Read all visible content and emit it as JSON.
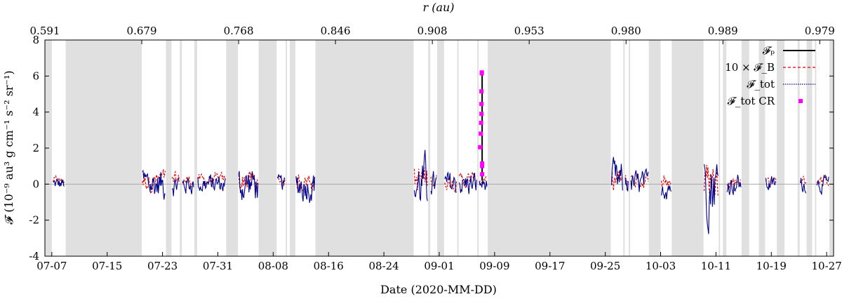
{
  "chart_data": {
    "type": "line",
    "xlabel": "Date (2020-MM-DD)",
    "ylabel": "𝓕 (10⁻⁹ au³ g cm⁻¹ s⁻² sr⁻¹)",
    "top_xlabel": "r (au)",
    "xlim": [
      "2020-07-06",
      "2020-10-28"
    ],
    "ylim": [
      -4,
      8
    ],
    "yticks": [
      -4,
      -2,
      0,
      2,
      4,
      6,
      8
    ],
    "xticks": [
      {
        "date": "2020-07-07",
        "label": "07-07"
      },
      {
        "date": "2020-07-15",
        "label": "07-15"
      },
      {
        "date": "2020-07-23",
        "label": "07-23"
      },
      {
        "date": "2020-07-31",
        "label": "07-31"
      },
      {
        "date": "2020-08-08",
        "label": "08-08"
      },
      {
        "date": "2020-08-16",
        "label": "08-16"
      },
      {
        "date": "2020-08-24",
        "label": "08-24"
      },
      {
        "date": "2020-09-01",
        "label": "09-01"
      },
      {
        "date": "2020-09-09",
        "label": "09-09"
      },
      {
        "date": "2020-09-17",
        "label": "09-17"
      },
      {
        "date": "2020-09-25",
        "label": "09-25"
      },
      {
        "date": "2020-10-03",
        "label": "10-03"
      },
      {
        "date": "2020-10-11",
        "label": "10-11"
      },
      {
        "date": "2020-10-19",
        "label": "10-19"
      },
      {
        "date": "2020-10-27",
        "label": "10-27"
      }
    ],
    "top_ticks": [
      {
        "date": "2020-07-06",
        "label": "0.591"
      },
      {
        "date": "2020-07-20",
        "label": "0.679"
      },
      {
        "date": "2020-08-03",
        "label": "0.768"
      },
      {
        "date": "2020-08-17",
        "label": "0.846"
      },
      {
        "date": "2020-08-31",
        "label": "0.908"
      },
      {
        "date": "2020-09-14",
        "label": "0.953"
      },
      {
        "date": "2020-09-28",
        "label": "0.980"
      },
      {
        "date": "2020-10-12",
        "label": "0.989"
      },
      {
        "date": "2020-10-26",
        "label": "0.979"
      }
    ],
    "gaps": [
      [
        "2020-07-06",
        "2020-07-07"
      ],
      [
        "2020-07-09",
        "2020-07-20"
      ],
      [
        "2020-07-23.5",
        "2020-07-24.3"
      ],
      [
        "2020-07-25.5",
        "2020-07-25.8"
      ],
      [
        "2020-07-27.6",
        "2020-07-28.0"
      ],
      [
        "2020-08-01.2",
        "2020-08-02.9"
      ],
      [
        "2020-08-05.9",
        "2020-08-08.5"
      ],
      [
        "2020-08-09.8",
        "2020-08-10.0"
      ],
      [
        "2020-08-10.4",
        "2020-08-11.2"
      ],
      [
        "2020-08-14.1",
        "2020-08-28.3"
      ],
      [
        "2020-08-30.4",
        "2020-08-30.7"
      ],
      [
        "2020-08-31.7",
        "2020-09-01.7"
      ],
      [
        "2020-09-03.6",
        "2020-09-03.8"
      ],
      [
        "2020-09-06.5",
        "2020-09-06.7"
      ],
      [
        "2020-09-08.0",
        "2020-09-25.8"
      ],
      [
        "2020-09-27.6",
        "2020-09-27.8"
      ],
      [
        "2020-09-28.4",
        "2020-09-28.6"
      ],
      [
        "2020-10-01.3",
        "2020-10-03.0"
      ],
      [
        "2020-10-04.6",
        "2020-10-09.2"
      ],
      [
        "2020-10-11.4",
        "2020-10-11.6"
      ],
      [
        "2020-10-12.0",
        "2020-10-12.5"
      ],
      [
        "2020-10-14.7",
        "2020-10-15.8"
      ],
      [
        "2020-10-17.2",
        "2020-10-18.1"
      ],
      [
        "2020-10-19.8",
        "2020-10-20.9"
      ],
      [
        "2020-10-22.8",
        "2020-10-23.1"
      ],
      [
        "2020-10-24.1",
        "2020-10-24.9"
      ],
      [
        "2020-10-25.3",
        "2020-10-25.5"
      ],
      [
        "2020-10-27.4",
        "2020-10-28"
      ]
    ],
    "data_segments": [
      {
        "start": "2020-07-07.2",
        "end": "2020-07-08.8",
        "amp": 0.35
      },
      {
        "start": "2020-07-20.1",
        "end": "2020-07-23.4",
        "amp": 0.8
      },
      {
        "start": "2020-07-24.4",
        "end": "2020-07-25.4",
        "amp": 0.6
      },
      {
        "start": "2020-07-25.9",
        "end": "2020-07-27.5",
        "amp": 0.5
      },
      {
        "start": "2020-07-28.1",
        "end": "2020-08-01.1",
        "amp": 0.5
      },
      {
        "start": "2020-08-03.0",
        "end": "2020-08-05.8",
        "amp": 0.9
      },
      {
        "start": "2020-08-08.6",
        "end": "2020-08-09.7",
        "amp": 0.4
      },
      {
        "start": "2020-08-11.3",
        "end": "2020-08-14.0",
        "amp": 0.8
      },
      {
        "start": "2020-08-28.4",
        "end": "2020-08-30.3",
        "amp": 1.3
      },
      {
        "start": "2020-08-30.8",
        "end": "2020-08-31.6",
        "amp": 0.6
      },
      {
        "start": "2020-09-01.8",
        "end": "2020-09-03.5",
        "amp": 0.6
      },
      {
        "start": "2020-09-03.9",
        "end": "2020-09-06.4",
        "amp": 0.6
      },
      {
        "start": "2020-09-06.8",
        "end": "2020-09-07.9",
        "amp": 0.4
      },
      {
        "start": "2020-09-25.9",
        "end": "2020-09-27.5",
        "amp": 1.0
      },
      {
        "start": "2020-09-27.9",
        "end": "2020-09-28.3",
        "amp": 0.5
      },
      {
        "start": "2020-09-28.7",
        "end": "2020-10-01.2",
        "amp": 0.6
      },
      {
        "start": "2020-10-03.1",
        "end": "2020-10-04.5",
        "amp": 0.7
      },
      {
        "start": "2020-10-09.3",
        "end": "2020-10-11.3",
        "amp": 1.6
      },
      {
        "start": "2020-10-12.6",
        "end": "2020-10-14.6",
        "amp": 0.5
      },
      {
        "start": "2020-10-18.2",
        "end": "2020-10-19.7",
        "amp": 0.4
      },
      {
        "start": "2020-10-23.2",
        "end": "2020-10-24.0",
        "amp": 0.4
      },
      {
        "start": "2020-10-25.6",
        "end": "2020-10-27.3",
        "amp": 0.4
      }
    ],
    "series": [
      {
        "name": "𝓕ₚ",
        "color": "#000000",
        "style": "solid",
        "spike": {
          "x": "2020-09-07.2",
          "y0": 0.2,
          "y1": 6.15
        }
      },
      {
        "name": "10 × 𝓕_B",
        "color": "#e00000",
        "style": "dashed"
      },
      {
        "name": "𝓕_tot",
        "color": "#00008b",
        "style": "dotted"
      },
      {
        "name": "𝓕_tot CR",
        "color": "#ff00ff",
        "style": "points",
        "x": [
          "2020-09-06.9",
          "2020-09-07.0",
          "2020-09-07.05",
          "2020-09-07.1",
          "2020-09-07.1",
          "2020-09-07.1",
          "2020-09-07.15",
          "2020-09-07.15",
          "2020-09-07.2",
          "2020-09-07.2",
          "2020-09-07.2"
        ],
        "y": [
          2.05,
          2.8,
          3.4,
          3.9,
          4.45,
          5.15,
          6.15,
          6.2,
          1.15,
          1.0,
          0.55
        ]
      }
    ],
    "legend": "top-right",
    "grid": false
  }
}
